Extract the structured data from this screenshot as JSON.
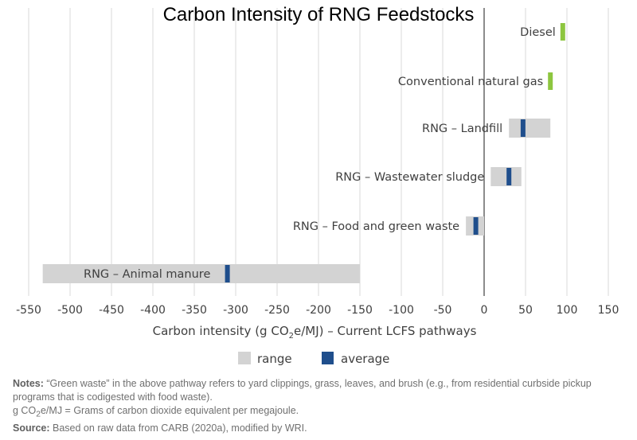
{
  "chart_data": {
    "type": "bar",
    "title": "Carbon Intensity of RNG Feedstocks",
    "xlabel": "Carbon intensity (g CO2e/MJ) – Current LCFS pathways",
    "xlabel_parts": {
      "pre": "Carbon intensity (g CO",
      "sub": "2",
      "post": "e/MJ) – Current LCFS pathways"
    },
    "xlim": [
      -550,
      150
    ],
    "xticks": [
      -550,
      -500,
      -450,
      -400,
      -350,
      -300,
      -250,
      -200,
      -150,
      -100,
      -50,
      0,
      50,
      100,
      150
    ],
    "grid": true,
    "legend": [
      "range",
      "average"
    ],
    "colors": {
      "range": "#d3d3d3",
      "average": "#1f4e8c",
      "reference": "#8dc63f",
      "zero_line": "#707070",
      "grid": "#d9d9d9"
    },
    "categories": [
      {
        "name": "Diesel",
        "kind": "reference",
        "value": 95
      },
      {
        "name": "Conventional natural gas",
        "kind": "reference",
        "value": 80
      },
      {
        "name": "RNG – Landfill",
        "kind": "range",
        "min": 30,
        "max": 80,
        "average": 47
      },
      {
        "name": "RNG – Wastewater sludge",
        "kind": "range",
        "min": 8,
        "max": 45,
        "average": 30
      },
      {
        "name": "RNG – Food and green waste",
        "kind": "range",
        "min": -22,
        "max": 0,
        "average": -10
      },
      {
        "name": "RNG – Animal manure",
        "kind": "range",
        "min": -533,
        "max": -150,
        "average": -310
      }
    ]
  },
  "notes": {
    "label1": "Notes:",
    "text1": " “Green waste” in the above pathway refers to yard clippings, grass, leaves, and brush (e.g., from residential curbside pickup programs that is codigested with food waste).",
    "line2_pre": "g CO",
    "line2_sub": "2",
    "line2_post": "e/MJ = Grams of carbon dioxide equivalent per megajoule.",
    "label3": "Source:",
    "text3": " Based on raw data from CARB (2020a), modified by WRI."
  }
}
